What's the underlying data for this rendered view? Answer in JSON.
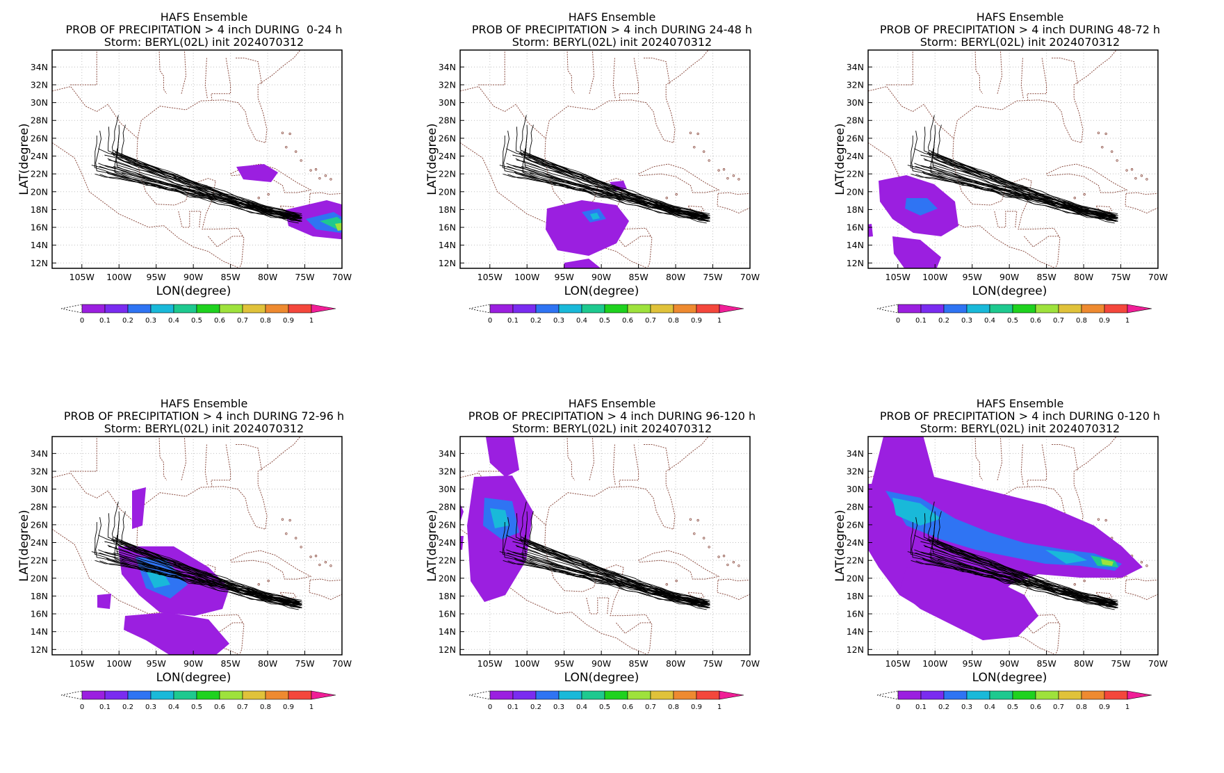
{
  "colors": {
    "purple": "#9b1fe0",
    "violet": "#7a2cf0",
    "blue": "#2f74f3",
    "cyan": "#19b9d9",
    "teal": "#1ec98f",
    "green": "#1fd21f",
    "lime": "#9ee23c",
    "yellow": "#e0c23a",
    "orange": "#ee8a30",
    "red": "#f4473c",
    "magenta": "#f01e97",
    "track": "#000000",
    "border": "#8a4b3f",
    "grid": "#bfbfbf"
  },
  "map": {
    "lat_ticks": [
      "34N",
      "32N",
      "30N",
      "28N",
      "26N",
      "24N",
      "22N",
      "20N",
      "18N",
      "16N",
      "14N",
      "12N"
    ],
    "lon_ticks": [
      "105W",
      "100W",
      "95W",
      "90W",
      "85W",
      "80W",
      "75W",
      "70W"
    ],
    "xlabel": "LON(degree)",
    "ylabel": "LAT(degree)"
  },
  "colorbar": {
    "labels": [
      "0",
      "0.1",
      "0.2",
      "0.3",
      "0.4",
      "0.5",
      "0.6",
      "0.7",
      "0.8",
      "0.9",
      "1"
    ]
  },
  "panels": [
    {
      "title": "HAFS Ensemble",
      "subtitle": "PROB OF PRECIPITATION > 4 inch DURING  0-24 h",
      "storm": "Storm: BERYL(02L) init 2024070312"
    },
    {
      "title": "HAFS Ensemble",
      "subtitle": "PROB OF PRECIPITATION > 4 inch DURING 24-48 h",
      "storm": "Storm: BERYL(02L) init 2024070312"
    },
    {
      "title": "HAFS Ensemble",
      "subtitle": "PROB OF PRECIPITATION > 4 inch DURING 48-72 h",
      "storm": "Storm: BERYL(02L) init 2024070312"
    },
    {
      "title": "HAFS Ensemble",
      "subtitle": "PROB OF PRECIPITATION > 4 inch DURING 72-96 h",
      "storm": "Storm: BERYL(02L) init 2024070312"
    },
    {
      "title": "HAFS Ensemble",
      "subtitle": "PROB OF PRECIPITATION > 4 inch DURING 96-120 h",
      "storm": "Storm: BERYL(02L) init 2024070312"
    },
    {
      "title": "HAFS Ensemble",
      "subtitle": "PROB OF PRECIPITATION > 4 inch DURING 0-120 h",
      "storm": "Storm: BERYL(02L) init 2024070312"
    }
  ]
}
